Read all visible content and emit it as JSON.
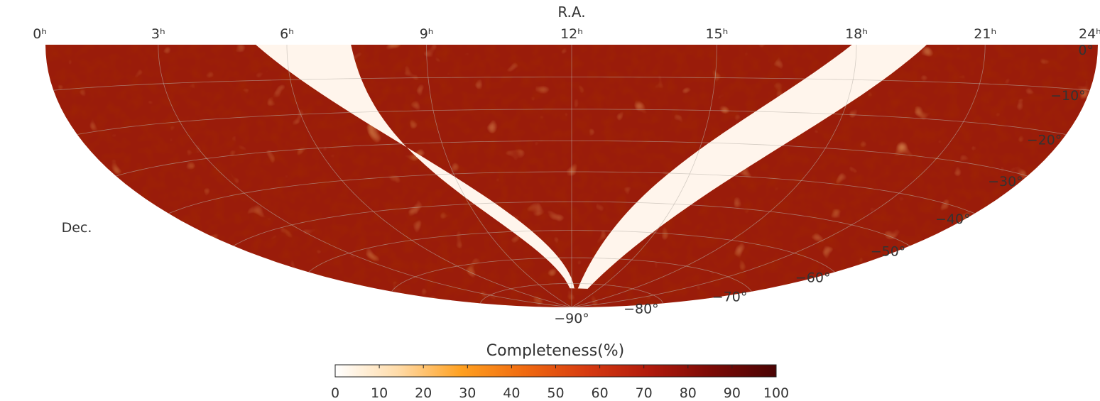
{
  "chart_data": {
    "type": "heatmap",
    "projection": "Hammer-Aitoff, southern celestial hemisphere",
    "title": "",
    "xlabel": "R.A.",
    "ylabel": "Dec.",
    "ra_ticks": [
      "24ʰ",
      "21ʰ",
      "18ʰ",
      "15ʰ",
      "12ʰ",
      "9ʰ",
      "6ʰ",
      "3ʰ",
      "0ʰ"
    ],
    "dec_ticks": [
      "0°",
      "−10°",
      "−20°",
      "−30°",
      "−40°",
      "−50°",
      "−60°",
      "−70°",
      "−80°",
      "−90°"
    ],
    "xlim": [
      24,
      0
    ],
    "ylim": [
      -90,
      0
    ],
    "grid": true,
    "colorbar": {
      "label": "Completeness(%)",
      "ticks": [
        "0",
        "10",
        "20",
        "30",
        "40",
        "50",
        "60",
        "70",
        "80",
        "90",
        "100"
      ],
      "range": [
        0,
        100
      ],
      "colors": [
        "#ffffff",
        "#ffdba8",
        "#ffa020",
        "#f06a10",
        "#d63a10",
        "#b01a0c",
        "#7a0a06",
        "#4a0404"
      ],
      "placement": "bottom"
    },
    "map_description": {
      "typical_completeness_percent": 85,
      "low_completeness_band": "curved band of ~0% completeness around 12h–18h (Galactic plane), reaching toward the south pole",
      "hotspots_low": "scattered lighter patches of 20–50% completeness, notably near Dec −50° to −70° around 3h–6h"
    }
  }
}
